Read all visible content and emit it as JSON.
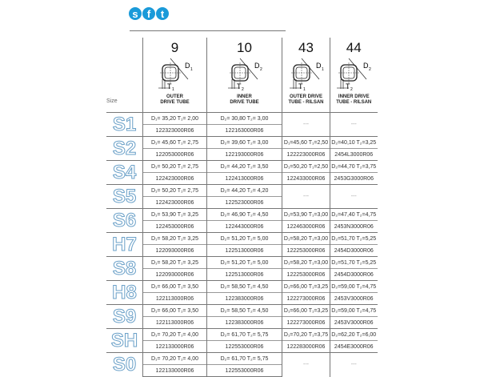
{
  "logo": {
    "letters": [
      "s",
      "f",
      "t"
    ],
    "color": "#1a9ad9"
  },
  "header": {
    "size_label": "Size",
    "columns": [
      {
        "number": "9",
        "desc": "OUTER\nDRIVE TUBE",
        "d": "D1",
        "t": "T1"
      },
      {
        "number": "10",
        "desc": "INNER\nDRIVE TUBE",
        "d": "D2",
        "t": "T2"
      },
      {
        "number": "43",
        "desc": "OUTER DRIVE\nTUBE - RILSAN",
        "d": "D1",
        "t": "T1"
      },
      {
        "number": "44",
        "desc": "INNER DRIVE\nTUBE - RILSAN",
        "d": "D2",
        "t": "T2"
      }
    ]
  },
  "rows": [
    {
      "size": "S1",
      "cells": [
        [
          "D₁= 35,20  T₁= 2,00",
          "122323000R06"
        ],
        [
          "D₂= 30,80  T₂= 3,00",
          "122163000R06"
        ],
        [
          "---",
          ""
        ],
        [
          "---",
          ""
        ]
      ]
    },
    {
      "size": "S2",
      "cells": [
        [
          "D₁= 45,60  T₁=  2,75",
          "122053000R06"
        ],
        [
          "D₂= 39,60  T₂= 3,00",
          "122193000R06"
        ],
        [
          "D₁=45,60 T₁=2,50",
          "122223000R06"
        ],
        [
          "D₂=40,10 T₂=3,25",
          "2454L3000R06"
        ]
      ]
    },
    {
      "size": "S4",
      "cells": [
        [
          "D₁= 50,20  T₁= 2,75",
          "122423000R06"
        ],
        [
          "D₂= 44,20  T₂= 3,50",
          "122413000R06"
        ],
        [
          "D₁=50,20 T₁=2,50",
          "122433000R06"
        ],
        [
          "D₂=44,70 T₂=3,75",
          "2453G3000R06"
        ]
      ]
    },
    {
      "size": "S5",
      "cells": [
        [
          "D₁= 50,20  T₁= 2,75",
          "122423000R06"
        ],
        [
          "D₂= 44,20  T₂= 4,20",
          "122523000R06"
        ],
        [
          "---",
          ""
        ],
        [
          "---",
          ""
        ]
      ]
    },
    {
      "size": "S6",
      "cells": [
        [
          "D₁= 53,90  T₁=  3,25",
          "122453000R06"
        ],
        [
          "D₂= 46,90  T₂= 4,50",
          "122443000R06"
        ],
        [
          "D₁=53,90 T₁=3,00",
          "122463000R06"
        ],
        [
          "D₂=47,40 T₂=4,75",
          "2453N3000R06"
        ]
      ]
    },
    {
      "size": "H7",
      "cells": [
        [
          "D₁= 58,20  T₁=  3,25",
          "122093000R06"
        ],
        [
          "D₂= 51,20  T₂= 5,00",
          "122513000R06"
        ],
        [
          "D₁=58,20 T₁=3,00",
          "122253000R06"
        ],
        [
          "D₂=51,70 T₂=5,25",
          "2454D3000R06"
        ]
      ]
    },
    {
      "size": "S8",
      "cells": [
        [
          "D₁= 58,20  T₁=  3,25",
          "122093000R06"
        ],
        [
          "D₂= 51,20  T₂= 5,00",
          "122513000R06"
        ],
        [
          "D₁=58,20 T₁=3,00",
          "122253000R06"
        ],
        [
          "D₂=51,70 T₂=5,25",
          "2454D3000R06"
        ]
      ]
    },
    {
      "size": "H8",
      "cells": [
        [
          "D₁= 66,00  T₁=  3,50",
          "122113000R06"
        ],
        [
          "D₂= 58,50  T₂= 4,50",
          "122383000R06"
        ],
        [
          "D₁=66,00 T₁=3,25",
          "122273000R06"
        ],
        [
          "D₂=59,00 T₂=4,75",
          "2453V3000R06"
        ]
      ]
    },
    {
      "size": "S9",
      "cells": [
        [
          "D₁= 66,00  T₁= 3,50",
          "122113000R06"
        ],
        [
          "D₂= 58,50  T₂= 4,50",
          "122383000R06"
        ],
        [
          "D₁=66,00 T₁=3,25",
          "122273000R06"
        ],
        [
          "D₂=59,00 T₂=4,75",
          "2453V3000R06"
        ]
      ]
    },
    {
      "size": "SH",
      "cells": [
        [
          "D₁= 70,20  T₁=  4,00",
          "122133000R06"
        ],
        [
          "D₂= 61,70  T₂= 5,75",
          "122553000R06"
        ],
        [
          "D₁=70,20 T₁=3,75",
          "122283000R06"
        ],
        [
          "D₂=62,20 T₂=6,00",
          "2454E3000R06"
        ]
      ]
    },
    {
      "size": "S0",
      "cells": [
        [
          "D₁= 70,20  T₁=  4,00",
          "122133000R06"
        ],
        [
          "D₂= 61,70  T₂= 5,75",
          "122553000R06"
        ],
        [
          "---",
          ""
        ],
        [
          "---",
          ""
        ]
      ]
    }
  ]
}
